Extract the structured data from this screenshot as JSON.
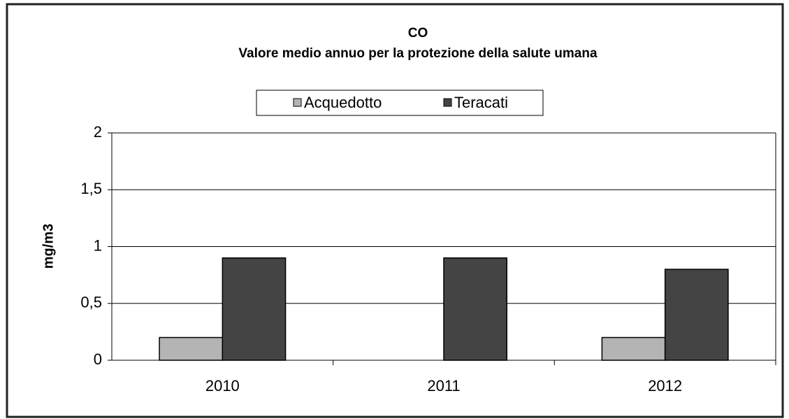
{
  "chart_data": {
    "type": "bar",
    "title": "CO",
    "subtitle": "Valore medio annuo per la protezione della salute umana",
    "y_label": "mg/m3",
    "categories": [
      "2010",
      "2011",
      "2012"
    ],
    "series": [
      {
        "name": "Acquedotto",
        "color": "#b4b4b4",
        "values": [
          0.2,
          null,
          0.2
        ]
      },
      {
        "name": "Teracati",
        "color": "#444444",
        "values": [
          0.9,
          0.9,
          0.8
        ]
      }
    ],
    "ylim": [
      0,
      2
    ],
    "yticks": [
      0,
      {
        "value": 0.5,
        "label": "0,5"
      },
      1,
      {
        "value": 1.5,
        "label": "1,5"
      },
      2
    ],
    "grid": true,
    "legend": "top"
  }
}
